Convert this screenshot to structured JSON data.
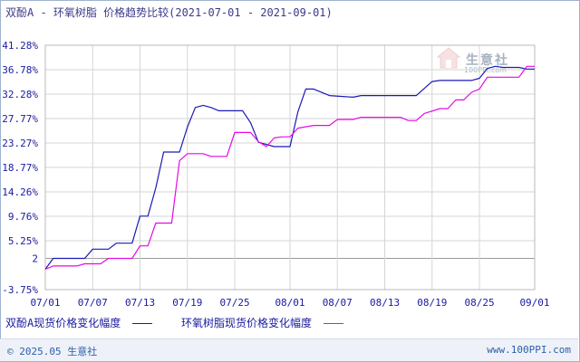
{
  "title": "双酚A - 环氧树脂 价格趋势比较(2021-07-01 - 2021-09-01)",
  "legend": {
    "a_label": "双酚A现货价格变化幅度",
    "b_label": "环氧树脂现货价格变化幅度"
  },
  "footer": {
    "copyright": "© 2025.05 生意社",
    "site": "www.100PPI.com"
  },
  "watermark": {
    "name": "生意社",
    "url": "100PPI.com"
  },
  "colors": {
    "series_a": "#1a1ab4",
    "series_b": "#e60ae6",
    "grid": "#d6d6d6",
    "zero_line": "#9a9a9a",
    "axis_text": "#1a1aa0"
  },
  "chart_data": {
    "type": "line",
    "ylim": [
      -3.75,
      41.28
    ],
    "y_ticks": [
      {
        "value": 41.28,
        "label": "41.28%"
      },
      {
        "value": 36.78,
        "label": "36.78%"
      },
      {
        "value": 32.28,
        "label": "32.28%"
      },
      {
        "value": 27.77,
        "label": "27.77%"
      },
      {
        "value": 23.27,
        "label": "23.27%"
      },
      {
        "value": 18.77,
        "label": "18.77%"
      },
      {
        "value": 14.26,
        "label": "14.26%"
      },
      {
        "value": 9.76,
        "label": "9.76%"
      },
      {
        "value": 5.25,
        "label": "5.25%"
      },
      {
        "value": 2,
        "label": "2"
      },
      {
        "value": -3.75,
        "label": "-3.75%"
      }
    ],
    "zero_line_value": 2,
    "x_range": [
      "2021-07-01",
      "2021-09-01"
    ],
    "x_ticks": [
      {
        "date": "2021-07-01",
        "label": "07/01"
      },
      {
        "date": "2021-07-07",
        "label": "07/07"
      },
      {
        "date": "2021-07-13",
        "label": "07/13"
      },
      {
        "date": "2021-07-19",
        "label": "07/19"
      },
      {
        "date": "2021-07-25",
        "label": "07/25"
      },
      {
        "date": "2021-08-01",
        "label": "08/01"
      },
      {
        "date": "2021-08-07",
        "label": "08/07"
      },
      {
        "date": "2021-08-13",
        "label": "08/13"
      },
      {
        "date": "2021-08-19",
        "label": "08/19"
      },
      {
        "date": "2021-08-25",
        "label": "08/25"
      },
      {
        "date": "2021-09-01",
        "label": "09/01"
      }
    ],
    "grid": true,
    "legend_position": "bottom",
    "series": [
      {
        "name": "双酚A现货价格变化幅度",
        "points": [
          [
            "2021-07-01",
            0.0
          ],
          [
            "2021-07-02",
            2.0
          ],
          [
            "2021-07-06",
            2.0
          ],
          [
            "2021-07-07",
            3.7
          ],
          [
            "2021-07-09",
            3.7
          ],
          [
            "2021-07-10",
            4.8
          ],
          [
            "2021-07-12",
            4.8
          ],
          [
            "2021-07-13",
            9.8
          ],
          [
            "2021-07-14",
            9.8
          ],
          [
            "2021-07-15",
            15.0
          ],
          [
            "2021-07-16",
            21.6
          ],
          [
            "2021-07-18",
            21.6
          ],
          [
            "2021-07-19",
            26.2
          ],
          [
            "2021-07-20",
            29.8
          ],
          [
            "2021-07-21",
            30.2
          ],
          [
            "2021-07-22",
            29.8
          ],
          [
            "2021-07-23",
            29.2
          ],
          [
            "2021-07-25",
            29.2
          ],
          [
            "2021-07-26",
            29.2
          ],
          [
            "2021-07-27",
            27.0
          ],
          [
            "2021-07-28",
            23.4
          ],
          [
            "2021-07-30",
            22.6
          ],
          [
            "2021-08-01",
            22.6
          ],
          [
            "2021-08-02",
            29.0
          ],
          [
            "2021-08-03",
            33.2
          ],
          [
            "2021-08-04",
            33.2
          ],
          [
            "2021-08-06",
            32.0
          ],
          [
            "2021-08-09",
            31.7
          ],
          [
            "2021-08-10",
            32.0
          ],
          [
            "2021-08-16",
            32.0
          ],
          [
            "2021-08-17",
            32.0
          ],
          [
            "2021-08-19",
            34.6
          ],
          [
            "2021-08-20",
            34.8
          ],
          [
            "2021-08-24",
            34.8
          ],
          [
            "2021-08-25",
            35.2
          ],
          [
            "2021-08-26",
            37.0
          ],
          [
            "2021-08-27",
            37.4
          ],
          [
            "2021-08-28",
            37.2
          ],
          [
            "2021-08-30",
            37.2
          ],
          [
            "2021-08-31",
            36.9
          ],
          [
            "2021-09-01",
            36.9
          ]
        ]
      },
      {
        "name": "环氧树脂现货价格变化幅度",
        "points": [
          [
            "2021-07-01",
            0.0
          ],
          [
            "2021-07-02",
            0.6
          ],
          [
            "2021-07-05",
            0.6
          ],
          [
            "2021-07-06",
            1.0
          ],
          [
            "2021-07-08",
            1.0
          ],
          [
            "2021-07-09",
            2.0
          ],
          [
            "2021-07-12",
            2.0
          ],
          [
            "2021-07-13",
            4.3
          ],
          [
            "2021-07-14",
            4.3
          ],
          [
            "2021-07-15",
            8.5
          ],
          [
            "2021-07-17",
            8.5
          ],
          [
            "2021-07-18",
            20.0
          ],
          [
            "2021-07-19",
            21.3
          ],
          [
            "2021-07-21",
            21.3
          ],
          [
            "2021-07-22",
            20.8
          ],
          [
            "2021-07-24",
            20.8
          ],
          [
            "2021-07-25",
            25.2
          ],
          [
            "2021-07-27",
            25.2
          ],
          [
            "2021-07-28",
            23.5
          ],
          [
            "2021-07-29",
            22.6
          ],
          [
            "2021-07-30",
            24.2
          ],
          [
            "2021-07-31",
            24.4
          ],
          [
            "2021-08-01",
            24.4
          ],
          [
            "2021-08-02",
            26.0
          ],
          [
            "2021-08-04",
            26.5
          ],
          [
            "2021-08-06",
            26.5
          ],
          [
            "2021-08-07",
            27.6
          ],
          [
            "2021-08-09",
            27.6
          ],
          [
            "2021-08-10",
            28.0
          ],
          [
            "2021-08-15",
            28.0
          ],
          [
            "2021-08-16",
            27.4
          ],
          [
            "2021-08-17",
            27.4
          ],
          [
            "2021-08-18",
            28.7
          ],
          [
            "2021-08-20",
            29.6
          ],
          [
            "2021-08-21",
            29.6
          ],
          [
            "2021-08-22",
            31.2
          ],
          [
            "2021-08-23",
            31.2
          ],
          [
            "2021-08-24",
            32.6
          ],
          [
            "2021-08-25",
            33.2
          ],
          [
            "2021-08-26",
            35.4
          ],
          [
            "2021-08-29",
            35.4
          ],
          [
            "2021-08-30",
            35.4
          ],
          [
            "2021-08-31",
            37.4
          ],
          [
            "2021-09-01",
            37.4
          ]
        ]
      }
    ]
  }
}
